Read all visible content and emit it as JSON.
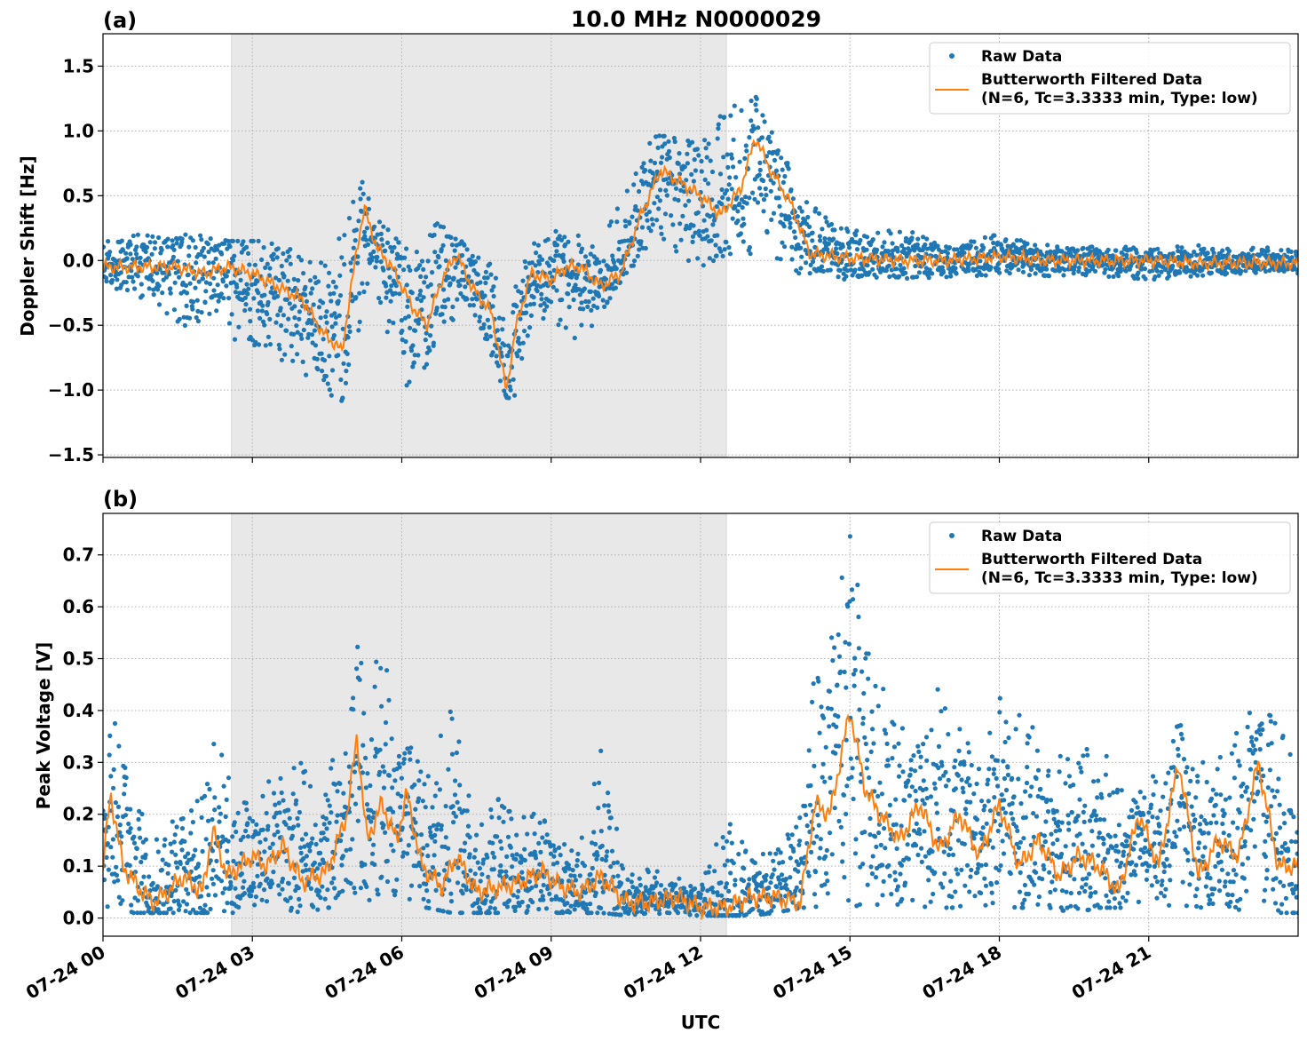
{
  "figure": {
    "title": "10.0 MHz N0000029",
    "xlabel": "UTC",
    "x_tick_labels": [
      "07-24 00",
      "07-24 03",
      "07-24 06",
      "07-24 09",
      "07-24 12",
      "07-24 15",
      "07-24 18",
      "07-24 21"
    ]
  },
  "colors": {
    "raw": "#1f77b4",
    "filtered": "#ff7f0e",
    "shade": "#e8e8e8",
    "grid": "#b0b0b0"
  },
  "chart_data": [
    {
      "type": "scatter",
      "panel_label": "(a)",
      "ylabel": "Doppler Shift [Hz]",
      "x_unit": "hours UTC on 07-24",
      "xlim": [
        0,
        24
      ],
      "ylim": [
        -1.52,
        1.75
      ],
      "y_ticks": [
        -1.5,
        -1.0,
        -0.5,
        0.0,
        0.5,
        1.0,
        1.5
      ],
      "y_tick_labels": [
        "−1.5",
        "−1.0",
        "−0.5",
        "0.0",
        "0.5",
        "1.0",
        "1.5"
      ],
      "grid": true,
      "shaded_interval": [
        2.58,
        12.52
      ],
      "legend": {
        "placement": "top-right",
        "entries": [
          "Raw Data",
          "Butterworth Filtered Data",
          "(N=6, Tc=3.3333 min, Type: low)"
        ]
      },
      "series": [
        {
          "name": "Raw Data",
          "kind": "scatter-envelope",
          "x": [
            0,
            0.5,
            1,
            1.5,
            2,
            2.5,
            3,
            3.5,
            4,
            4.4,
            4.8,
            5.2,
            5.4,
            5.8,
            6.2,
            6.6,
            7,
            7.4,
            7.8,
            8.2,
            8.6,
            9,
            9.5,
            10,
            10.5,
            11,
            11.5,
            12,
            12.5,
            13,
            13.5,
            14,
            14.5,
            15,
            16,
            17,
            18,
            19,
            20,
            21,
            22,
            23,
            24
          ],
          "lower": [
            -0.15,
            -0.3,
            -0.3,
            -0.5,
            -0.55,
            -0.6,
            -0.7,
            -0.75,
            -0.85,
            -1.05,
            -1.1,
            -0.45,
            -0.1,
            -0.7,
            -1.1,
            -0.7,
            -0.45,
            -0.6,
            -0.75,
            -1.15,
            -0.55,
            -0.5,
            -0.7,
            -0.4,
            -0.1,
            0.1,
            0.0,
            -0.1,
            0.05,
            0.05,
            0.0,
            -0.15,
            -0.15,
            -0.15,
            -0.15,
            -0.15,
            -0.12,
            -0.12,
            -0.12,
            -0.15,
            -0.12,
            -0.1,
            -0.1
          ],
          "upper": [
            0.15,
            0.2,
            0.2,
            0.2,
            0.22,
            0.15,
            0.15,
            0.15,
            0.05,
            0.0,
            0.2,
            0.65,
            0.45,
            0.2,
            0.05,
            0.3,
            0.25,
            0.1,
            0.0,
            -0.3,
            0.15,
            0.25,
            0.2,
            0.1,
            0.6,
            1.0,
            0.95,
            0.9,
            1.2,
            1.35,
            0.95,
            0.55,
            0.35,
            0.25,
            0.25,
            0.15,
            0.2,
            0.12,
            0.12,
            0.1,
            0.12,
            0.1,
            0.1
          ]
        },
        {
          "name": "Butterworth Filtered Data",
          "kind": "line",
          "x": [
            0,
            0.5,
            1,
            1.5,
            2,
            2.5,
            3,
            3.5,
            4,
            4.4,
            4.8,
            5.1,
            5.25,
            5.5,
            5.8,
            6.2,
            6.5,
            6.8,
            7.1,
            7.4,
            7.8,
            8.1,
            8.3,
            8.6,
            9,
            9.3,
            9.6,
            10,
            10.4,
            10.8,
            11.2,
            11.6,
            12,
            12.4,
            12.8,
            13.1,
            13.4,
            13.8,
            14.2,
            15,
            16,
            17,
            18,
            19,
            20,
            21,
            22,
            23,
            24
          ],
          "y": [
            -0.05,
            -0.05,
            -0.05,
            -0.05,
            -0.1,
            -0.05,
            -0.1,
            -0.2,
            -0.3,
            -0.55,
            -0.7,
            0.1,
            0.4,
            0.1,
            -0.05,
            -0.35,
            -0.5,
            -0.15,
            0.05,
            -0.2,
            -0.4,
            -1.0,
            -0.5,
            -0.1,
            -0.15,
            -0.05,
            -0.05,
            -0.2,
            -0.1,
            0.35,
            0.7,
            0.6,
            0.5,
            0.35,
            0.55,
            0.95,
            0.7,
            0.45,
            0.05,
            0.02,
            0.0,
            0.0,
            0.03,
            0.0,
            0.0,
            0.0,
            -0.02,
            -0.02,
            -0.02
          ]
        }
      ]
    },
    {
      "type": "scatter",
      "panel_label": "(b)",
      "ylabel": "Peak Voltage [V]",
      "x_unit": "hours UTC on 07-24",
      "xlim": [
        0,
        24
      ],
      "ylim": [
        -0.035,
        0.78
      ],
      "y_ticks": [
        0.0,
        0.1,
        0.2,
        0.3,
        0.4,
        0.5,
        0.6,
        0.7
      ],
      "y_tick_labels": [
        "0.0",
        "0.1",
        "0.2",
        "0.3",
        "0.4",
        "0.5",
        "0.6",
        "0.7"
      ],
      "grid": true,
      "shaded_interval": [
        2.58,
        12.52
      ],
      "legend": {
        "placement": "top-right",
        "entries": [
          "Raw Data",
          "Butterworth Filtered Data",
          "(N=6, Tc=3.3333 min, Type: low)"
        ]
      },
      "series": [
        {
          "name": "Raw Data",
          "kind": "scatter-envelope",
          "x": [
            0,
            0.2,
            0.6,
            1,
            1.5,
            2,
            2.2,
            2.6,
            3,
            3.5,
            4,
            4.5,
            5,
            5.2,
            5.5,
            5.8,
            6,
            6.5,
            7,
            7.5,
            8,
            8.5,
            9,
            9.5,
            10,
            10.5,
            11,
            11.5,
            12,
            12.5,
            13,
            13.5,
            14,
            14.3,
            14.6,
            15,
            15.3,
            15.6,
            16,
            16.5,
            17,
            17.5,
            18,
            18.5,
            19,
            19.5,
            20,
            20.5,
            21,
            21.5,
            22,
            22.5,
            23,
            23.5,
            24
          ],
          "lower": [
            0.01,
            0.01,
            0.01,
            0.01,
            0.01,
            0.01,
            0.01,
            0.01,
            0.02,
            0.02,
            0.01,
            0.02,
            0.02,
            0.03,
            0.02,
            0.02,
            0.02,
            0.02,
            0.01,
            0.01,
            0.01,
            0.01,
            0.01,
            0.01,
            0.01,
            0.005,
            0.01,
            0.005,
            0.005,
            0.005,
            0.005,
            0.01,
            0.02,
            0.02,
            0.02,
            0.02,
            0.02,
            0.02,
            0.02,
            0.02,
            0.02,
            0.02,
            0.02,
            0.02,
            0.02,
            0.01,
            0.02,
            0.02,
            0.02,
            0.02,
            0.02,
            0.01,
            0.02,
            0.01,
            0.01
          ],
          "upper": [
            0.3,
            0.4,
            0.25,
            0.15,
            0.2,
            0.25,
            0.38,
            0.25,
            0.24,
            0.28,
            0.3,
            0.3,
            0.45,
            0.65,
            0.5,
            0.5,
            0.35,
            0.32,
            0.41,
            0.18,
            0.25,
            0.2,
            0.22,
            0.12,
            0.33,
            0.08,
            0.1,
            0.08,
            0.06,
            0.2,
            0.12,
            0.14,
            0.2,
            0.5,
            0.55,
            0.74,
            0.55,
            0.5,
            0.4,
            0.35,
            0.54,
            0.3,
            0.43,
            0.42,
            0.35,
            0.3,
            0.35,
            0.25,
            0.25,
            0.4,
            0.3,
            0.33,
            0.4,
            0.45,
            0.3
          ]
        },
        {
          "name": "Butterworth Filtered Data",
          "kind": "line",
          "x": [
            0,
            0.15,
            0.4,
            0.7,
            1,
            1.3,
            1.6,
            2,
            2.2,
            2.5,
            3,
            3.3,
            3.6,
            4,
            4.5,
            4.9,
            5.1,
            5.3,
            5.6,
            5.9,
            6.1,
            6.4,
            6.8,
            7.1,
            7.5,
            8,
            8.4,
            8.8,
            9.2,
            9.6,
            10,
            10.5,
            11,
            11.5,
            12,
            12.5,
            13,
            13.5,
            14,
            14.3,
            14.6,
            15,
            15.3,
            15.6,
            16,
            16.4,
            16.8,
            17.2,
            17.6,
            18,
            18.4,
            18.8,
            19.2,
            19.6,
            20,
            20.4,
            20.8,
            21.2,
            21.6,
            22,
            22.4,
            22.8,
            23.2,
            23.6,
            24
          ],
          "y": [
            0.1,
            0.24,
            0.1,
            0.06,
            0.03,
            0.05,
            0.08,
            0.05,
            0.17,
            0.08,
            0.12,
            0.1,
            0.14,
            0.07,
            0.09,
            0.2,
            0.35,
            0.15,
            0.22,
            0.15,
            0.24,
            0.1,
            0.06,
            0.12,
            0.05,
            0.06,
            0.07,
            0.09,
            0.06,
            0.05,
            0.08,
            0.03,
            0.03,
            0.04,
            0.02,
            0.02,
            0.04,
            0.04,
            0.03,
            0.22,
            0.2,
            0.4,
            0.25,
            0.2,
            0.15,
            0.22,
            0.13,
            0.2,
            0.12,
            0.22,
            0.1,
            0.15,
            0.08,
            0.12,
            0.1,
            0.05,
            0.2,
            0.1,
            0.3,
            0.08,
            0.15,
            0.12,
            0.3,
            0.1,
            0.1
          ]
        }
      ]
    }
  ]
}
